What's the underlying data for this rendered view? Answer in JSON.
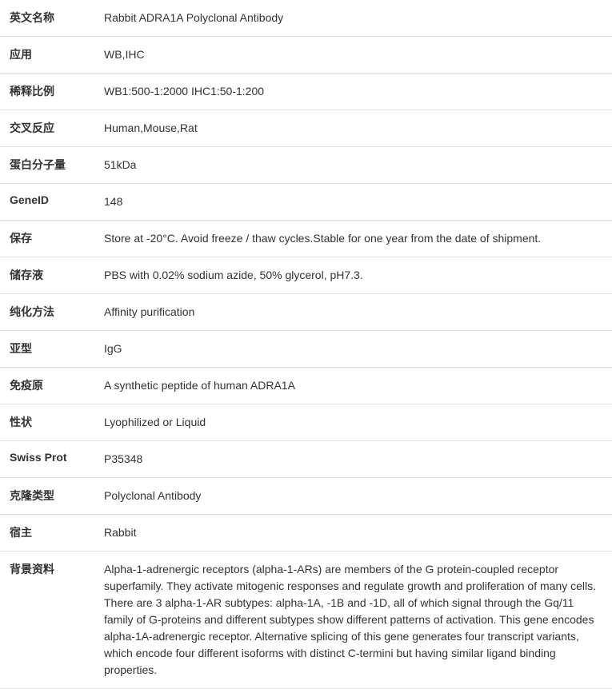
{
  "specs": [
    {
      "label": "英文名称",
      "value": "Rabbit ADRA1A Polyclonal Antibody"
    },
    {
      "label": "应用",
      "value": "WB,IHC"
    },
    {
      "label": "稀释比例",
      "value": "WB1:500-1:2000 IHC1:50-1:200"
    },
    {
      "label": "交叉反应",
      "value": "Human,Mouse,Rat"
    },
    {
      "label": "蛋白分子量",
      "value": "51kDa"
    },
    {
      "label": "GeneID",
      "value": "148"
    },
    {
      "label": "保存",
      "value": "Store at -20°C. Avoid freeze / thaw cycles.Stable for one year from the date of shipment."
    },
    {
      "label": "储存液",
      "value": "PBS with 0.02% sodium azide, 50% glycerol, pH7.3."
    },
    {
      "label": "纯化方法",
      "value": "Affinity purification"
    },
    {
      "label": "亚型",
      "value": "IgG"
    },
    {
      "label": "免疫原",
      "value": "A synthetic peptide of human ADRA1A"
    },
    {
      "label": "性状",
      "value": "Lyophilized or Liquid"
    },
    {
      "label": "Swiss Prot",
      "value": "P35348"
    },
    {
      "label": "克隆类型",
      "value": "Polyclonal Antibody"
    },
    {
      "label": "宿主",
      "value": "Rabbit"
    },
    {
      "label": "背景资料",
      "value": "Alpha-1-adrenergic receptors (alpha-1-ARs) are members of the G protein-coupled receptor superfamily. They activate mitogenic responses and regulate growth and proliferation of many cells. There are 3 alpha-1-AR subtypes: alpha-1A, -1B and -1D, all of which signal through the Gq/11 family of G-proteins and different subtypes show different patterns of activation. This gene encodes alpha-1A-adrenergic receptor. Alternative splicing of this gene generates four transcript variants, which encode four different isoforms with distinct C-termini but having similar ligand binding properties."
    }
  ]
}
